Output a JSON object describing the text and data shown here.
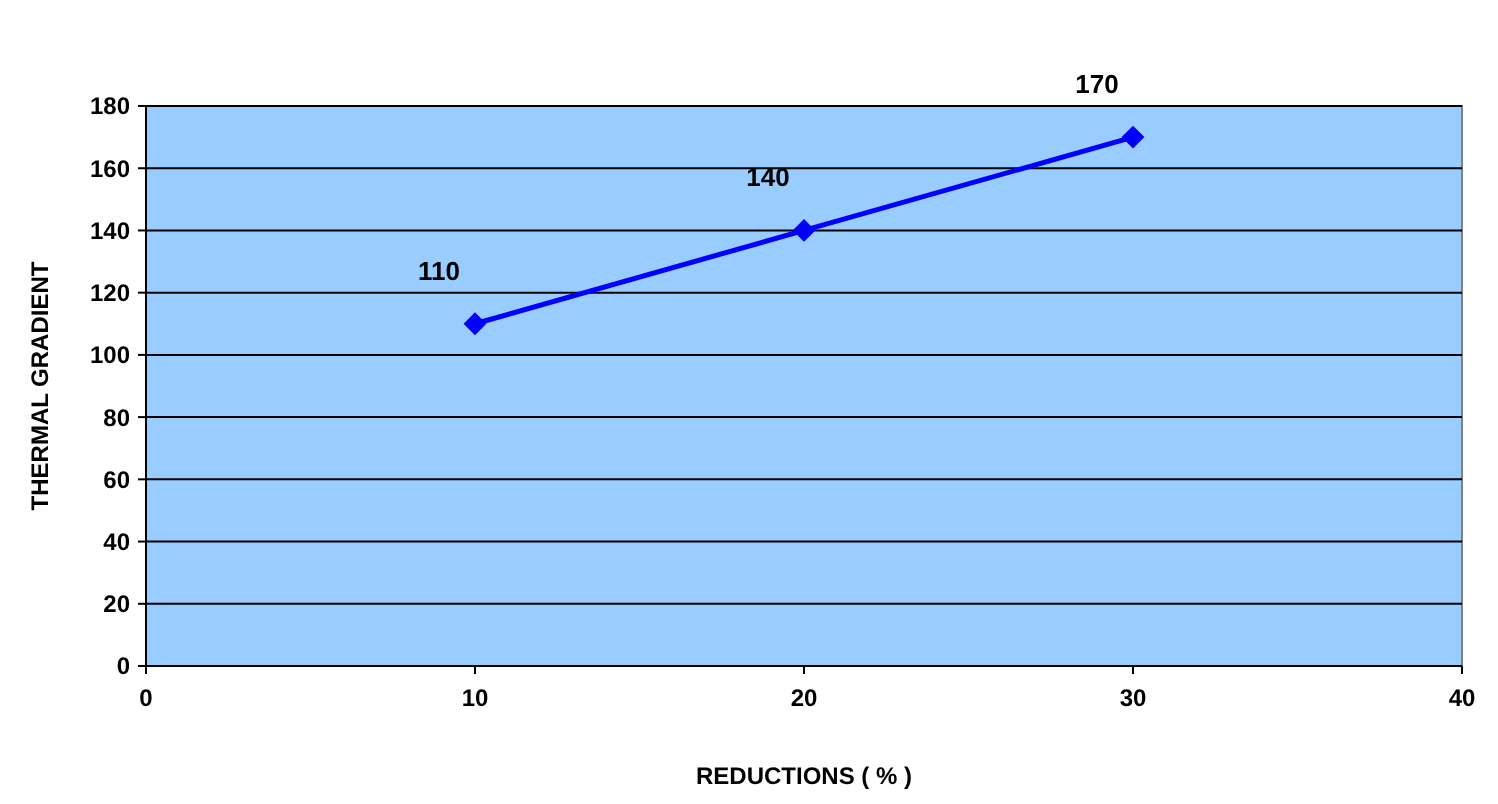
{
  "chart_data": {
    "type": "line",
    "xlabel": "REDUCTIONS ( % )",
    "ylabel": "THERMAL GRADIENT",
    "x": [
      10,
      20,
      30
    ],
    "series": [
      {
        "color": "#0000ff",
        "values": [
          110,
          140,
          170
        ]
      }
    ],
    "xlim": [
      0,
      40
    ],
    "xticks": [
      0,
      10,
      20,
      30,
      40
    ],
    "ylim": [
      0,
      180
    ],
    "yticks": [
      0,
      20,
      40,
      60,
      80,
      100,
      120,
      140,
      160,
      180
    ],
    "grid": "y",
    "marker": "diamond",
    "line_style": "solid",
    "data_labels": true
  }
}
